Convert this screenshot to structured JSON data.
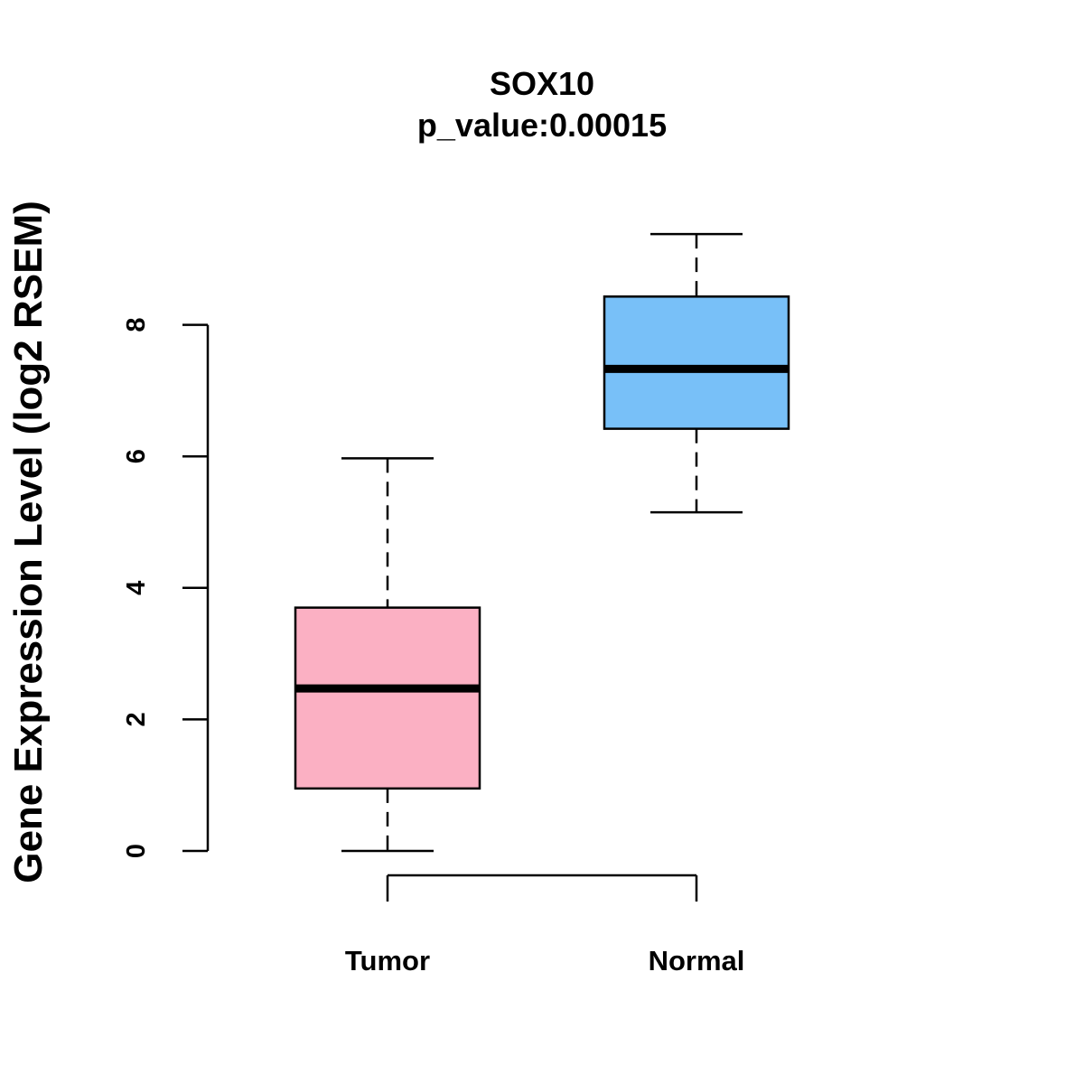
{
  "chart_data": {
    "type": "boxplot",
    "title": "SOX10",
    "subtitle": "p_value:0.00015",
    "xlabel": "",
    "ylabel": "Gene Expression Level (log2 RSEM)",
    "ylim": [
      0,
      8
    ],
    "y_ticks": [
      0,
      2,
      4,
      6,
      8
    ],
    "y_tick_labels": [
      "0",
      "2",
      "4",
      "6",
      "8"
    ],
    "grid": false,
    "categories": [
      "Tumor",
      "Normal"
    ],
    "series": [
      {
        "name": "Tumor",
        "color": "#FBB0C3",
        "min": 0.0,
        "q1": 0.95,
        "median": 2.47,
        "q3": 3.7,
        "max": 5.97
      },
      {
        "name": "Normal",
        "color": "#78C0F8",
        "min": 5.15,
        "q1": 6.42,
        "median": 7.33,
        "q3": 8.43,
        "max": 9.38
      }
    ]
  }
}
